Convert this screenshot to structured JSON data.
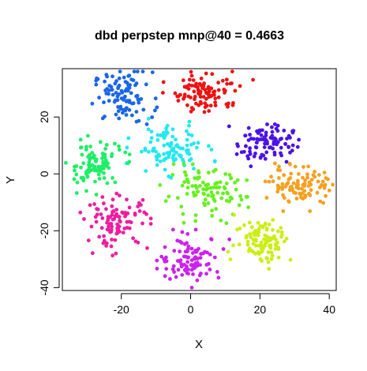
{
  "chart_data": {
    "type": "scatter",
    "title": "dbd perpstep mnp@40 = 0.4663",
    "xlabel": "X",
    "ylabel": "Y",
    "xlim": [
      -37,
      42
    ],
    "ylim": [
      -41,
      37
    ],
    "x_ticks": [
      -20,
      0,
      20,
      40
    ],
    "y_ticks": [
      -40,
      -20,
      0,
      20
    ],
    "x_tick_labels": [
      "-20",
      "0",
      "20",
      "40"
    ],
    "y_tick_labels": [
      "-40",
      "-20",
      "0",
      "20"
    ],
    "grid": false,
    "legend": "none",
    "point_count_per_cluster": 100,
    "clusters": [
      {
        "color": "#1a66e8",
        "center": [
          -19.5,
          27
        ],
        "spread": [
          4.2,
          4.5
        ]
      },
      {
        "color": "#ee1212",
        "center": [
          5,
          29
        ],
        "spread": [
          5.0,
          3.5
        ]
      },
      {
        "color": "#4b12e6",
        "center": [
          21.5,
          11
        ],
        "spread": [
          4.0,
          3.5
        ]
      },
      {
        "color": "#22e8f0",
        "center": [
          -6,
          9
        ],
        "spread": [
          5.0,
          4.0
        ]
      },
      {
        "color": "#1eee66",
        "center": [
          -28,
          3
        ],
        "spread": [
          4.0,
          4.0
        ]
      },
      {
        "color": "#f5a020",
        "center": [
          32,
          -4
        ],
        "spread": [
          4.5,
          3.5
        ]
      },
      {
        "color": "#66f01e",
        "center": [
          4,
          -7
        ],
        "spread": [
          6.0,
          4.0
        ]
      },
      {
        "color": "#ee1ea0",
        "center": [
          -21,
          -17
        ],
        "spread": [
          4.5,
          4.5
        ]
      },
      {
        "color": "#ccee14",
        "center": [
          21,
          -23
        ],
        "spread": [
          4.0,
          4.0
        ]
      },
      {
        "color": "#cc22ee",
        "center": [
          0,
          -30
        ],
        "spread": [
          4.5,
          4.0
        ]
      }
    ]
  }
}
